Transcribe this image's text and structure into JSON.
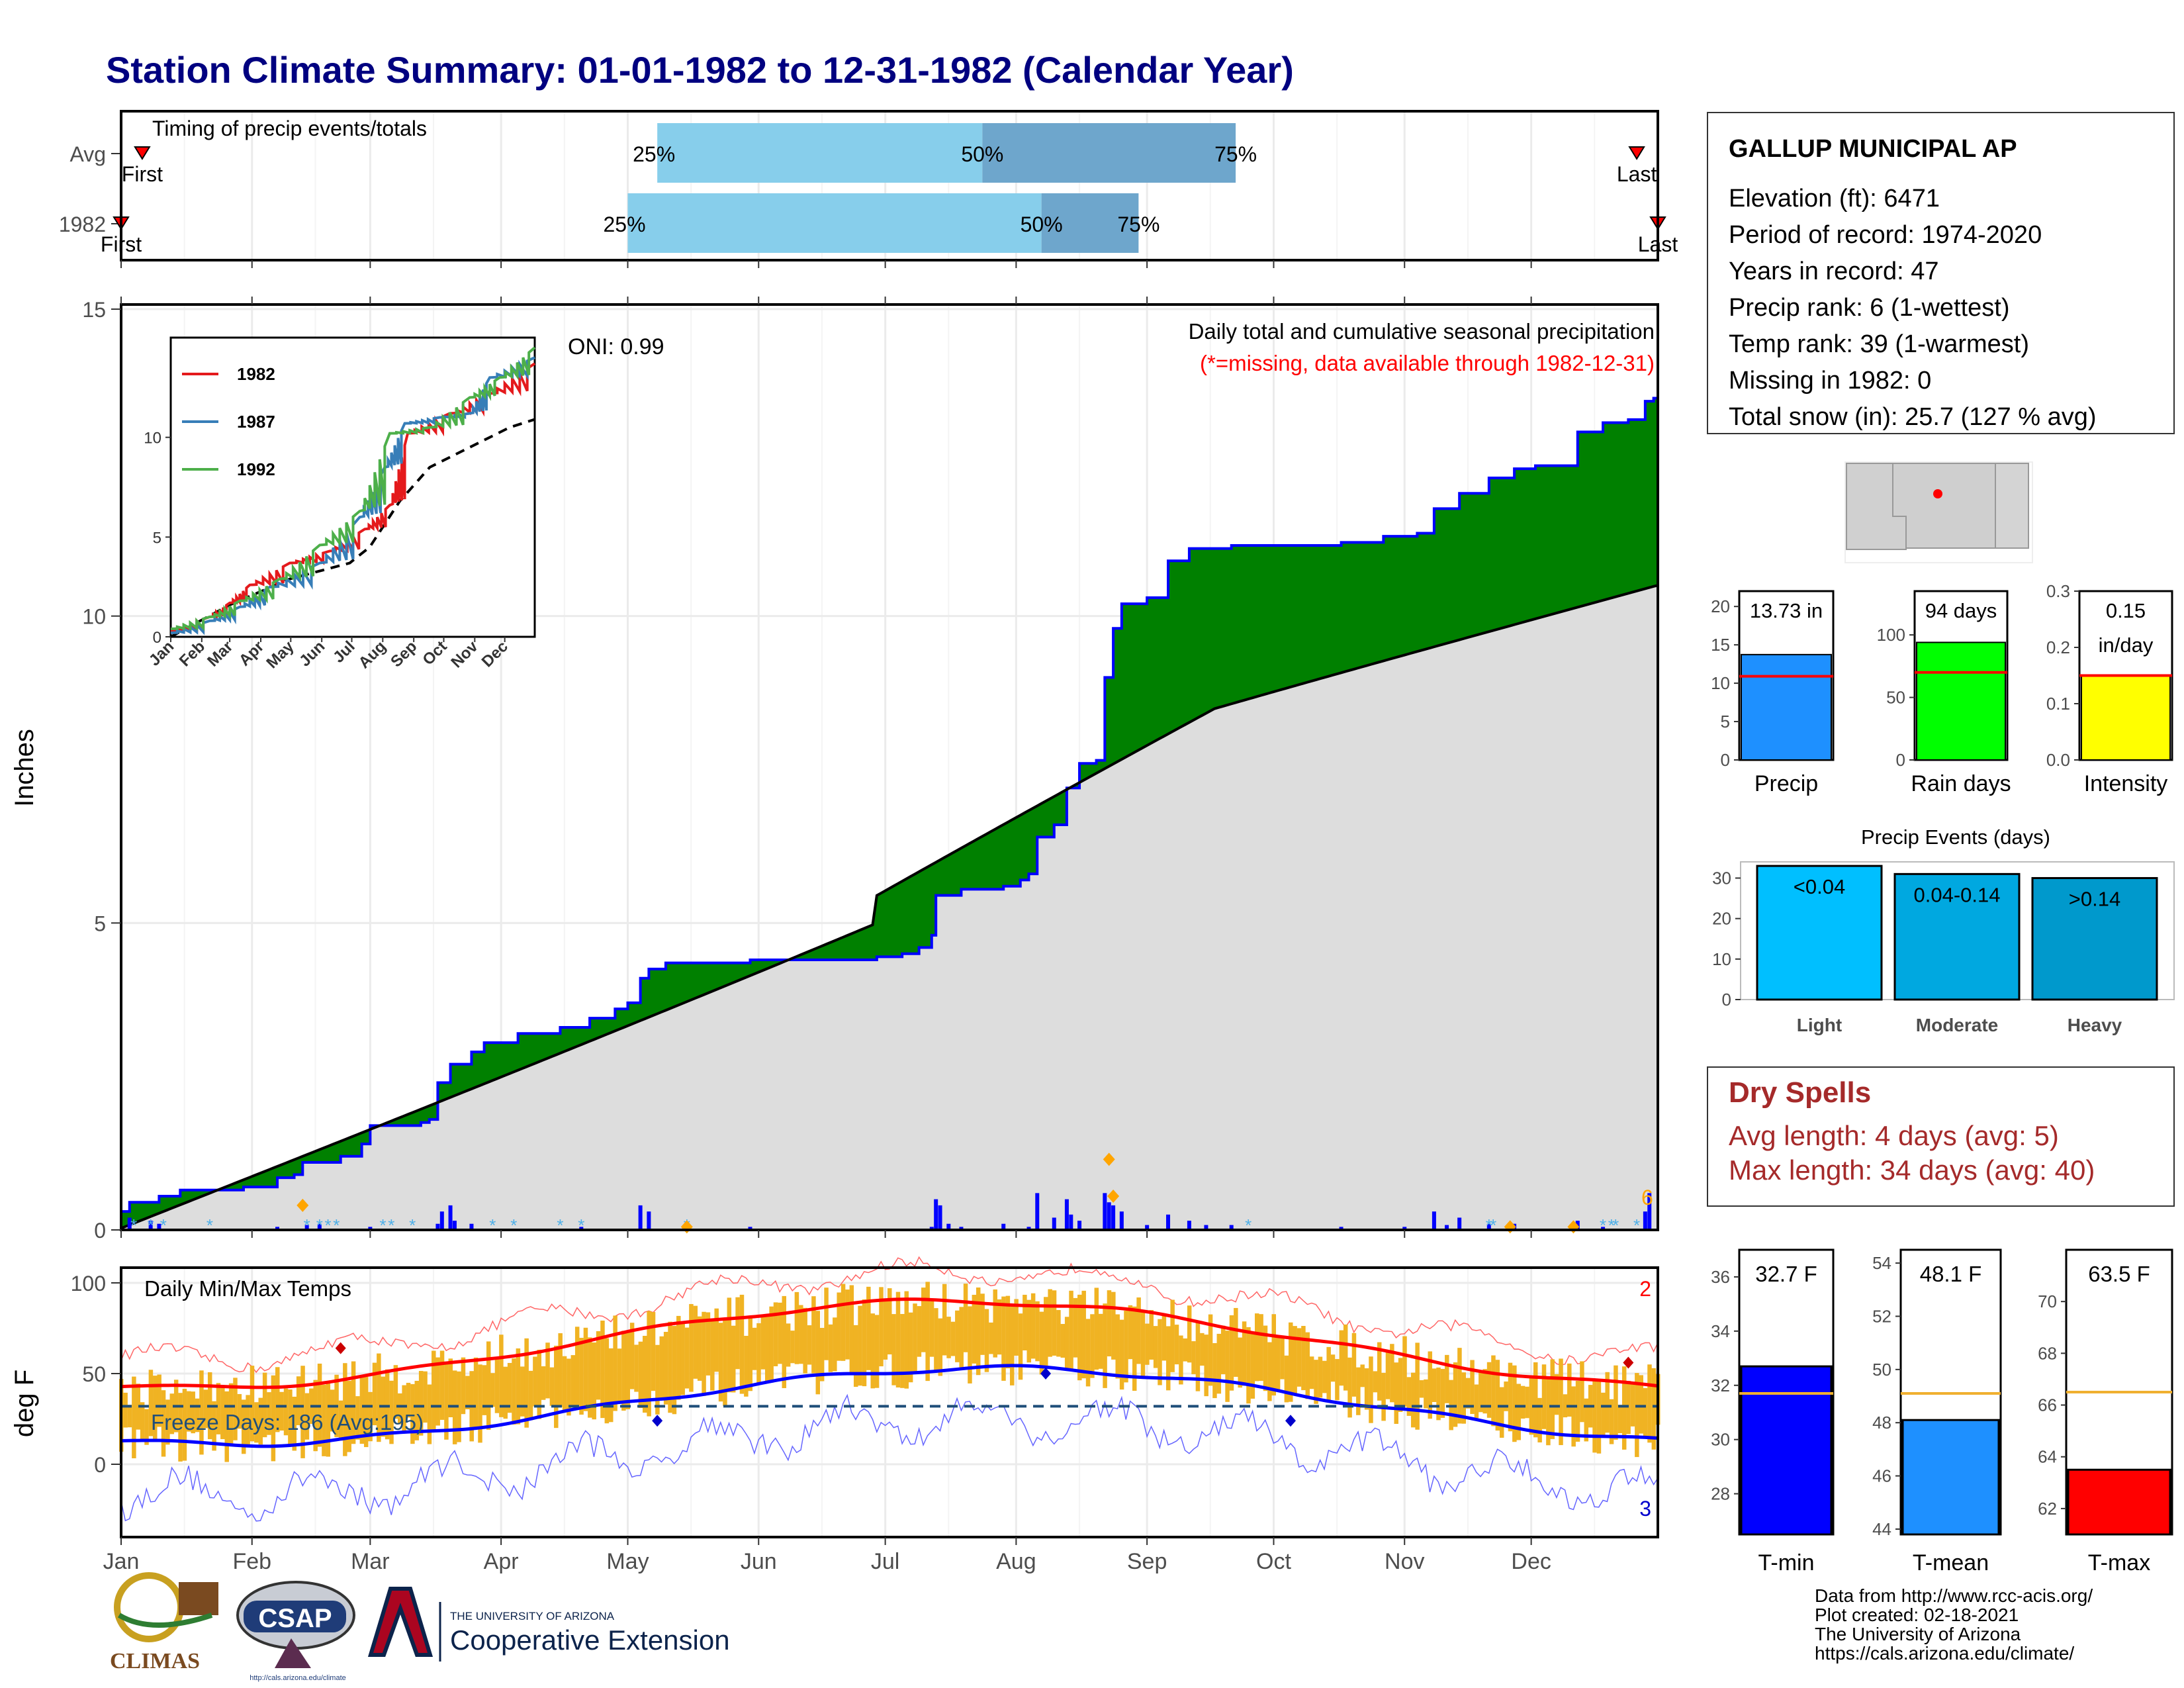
{
  "title": "Station Climate Summary: 01-01-1982 to 12-31-1982 (Calendar Year)",
  "months": [
    "Jan",
    "Feb",
    "Mar",
    "Apr",
    "May",
    "Jun",
    "Jul",
    "Aug",
    "Sep",
    "Oct",
    "Nov",
    "Dec"
  ],
  "colors": {
    "title": "#000080",
    "green": "#008000",
    "gray": "#dddddd",
    "blue": "#0000ff",
    "lightblue": "#87ceeb",
    "steelblue": "#6ea6cc",
    "orange": "#f0b323",
    "red": "#ff0000",
    "darkred": "#a52a2a"
  },
  "timing": {
    "title": "Timing of precip events/totals",
    "rows": [
      {
        "label": "Avg",
        "first": "First",
        "last": "Last",
        "first_doy": 6,
        "last_doy": 360,
        "p25_doy": 128,
        "p50_doy": 205,
        "p75_doy": 265,
        "p25": "25%",
        "p50": "50%",
        "p75": "75%"
      },
      {
        "label": "1982",
        "first": "First",
        "last": "Last",
        "first_doy": 1,
        "last_doy": 365,
        "p25_doy": 121,
        "p50_doy": 219,
        "p75_doy": 242,
        "p25": "25%",
        "p50": "50%",
        "p75": "75%"
      }
    ]
  },
  "precip": {
    "ylabel": "Inches",
    "title": "Daily total and cumulative seasonal precipitation",
    "missing_note": "(*=missing, data available through 1982-12-31)",
    "oni": "ONI: 0.99",
    "count_label": "6",
    "yticks": [
      0,
      5,
      10,
      15
    ],
    "ylim": [
      0,
      15
    ]
  },
  "inset": {
    "yticks": [
      0,
      5,
      10
    ],
    "ylim": [
      0,
      15
    ],
    "months": [
      "Jan",
      "Feb",
      "Mar",
      "Apr",
      "May",
      "Jun",
      "Jul",
      "Aug",
      "Sep",
      "Oct",
      "Nov",
      "Dec"
    ],
    "legend": [
      {
        "name": "1982",
        "color": "#e41a1c"
      },
      {
        "name": "1987",
        "color": "#377eb8"
      },
      {
        "name": "1992",
        "color": "#4daf4a"
      }
    ]
  },
  "temps": {
    "ylabel": "deg F",
    "title": "Daily Min/Max Temps",
    "freeze": "Freeze Days: 186 (Avg:195)",
    "freeze_temp": 32,
    "max_records": "2",
    "min_records": "3",
    "yticks": [
      0,
      50,
      100
    ],
    "ylim": [
      -40,
      105
    ]
  },
  "station": {
    "name": "GALLUP MUNICIPAL AP",
    "lines": [
      "Elevation (ft): 6471",
      "Period of record: 1974-2020",
      "Years in record: 47",
      "Precip rank: 6 (1-wettest)",
      "Temp rank: 39 (1-warmest)",
      "Missing in 1982: 0",
      "Total snow (in): 25.7 (127 % avg)"
    ]
  },
  "summary_bars": [
    {
      "label": "Precip",
      "value_text": "13.73 in",
      "value": 13.73,
      "avg": 10.9,
      "color": "#1e90ff",
      "ylim": [
        0,
        22
      ],
      "yticks": [
        0,
        5,
        10,
        15,
        20
      ]
    },
    {
      "label": "Rain days",
      "value_text": "94 days",
      "value": 94,
      "avg": 70,
      "color": "#00ff00",
      "ylim": [
        0,
        135
      ],
      "yticks": [
        0,
        50,
        100
      ]
    },
    {
      "label": "Intensity",
      "value_text": "0.15\nin/day",
      "value": 0.15,
      "avg": 0.15,
      "color": "#ffff00",
      "ylim": [
        0,
        0.3
      ],
      "yticks": [
        "0.0",
        "0.1",
        "0.2",
        "0.3"
      ]
    }
  ],
  "events": {
    "title": "Precip Events (days)",
    "yticks": [
      0,
      10,
      20,
      30
    ],
    "ylim": [
      0,
      34
    ],
    "bars": [
      {
        "label": "Light",
        "range": "<0.04",
        "value": 33,
        "color": "#00bfff"
      },
      {
        "label": "Moderate",
        "range": "0.04-0.14",
        "value": 31,
        "color": "#00a8e0"
      },
      {
        "label": "Heavy",
        "range": ">0.14",
        "value": 30,
        "color": "#0099cc"
      }
    ]
  },
  "dry": {
    "title": "Dry Spells",
    "avg": "Avg length: 4 days (avg: 5)",
    "max": "Max length: 34 days (avg: 40)"
  },
  "temp_bars": [
    {
      "label": "T-min",
      "value_text": "32.7 F",
      "value": 32.7,
      "avg": 31.7,
      "color": "#0000ff",
      "ylim": [
        26.5,
        37
      ],
      "yticks": [
        28,
        30,
        32,
        34,
        36
      ]
    },
    {
      "label": "T-mean",
      "value_text": "48.1 F",
      "value": 48.1,
      "avg": 49.1,
      "color": "#1e90ff",
      "ylim": [
        43.8,
        54.5
      ],
      "yticks": [
        44,
        46,
        48,
        50,
        52,
        54
      ]
    },
    {
      "label": "T-max",
      "value_text": "63.5 F",
      "value": 63.5,
      "avg": 66.5,
      "color": "#ff0000",
      "ylim": [
        61,
        72
      ],
      "yticks": [
        62,
        64,
        66,
        68,
        70
      ]
    }
  ],
  "footer": {
    "credits": [
      "Data from http://www.rcc-acis.org/",
      "Plot created: 02-18-2021",
      "The University of Arizona",
      "https://cals.arizona.edu/climate/"
    ],
    "climas": "CLIMAS",
    "csap": "CSAP",
    "csap_url": "http://cals.arizona.edu/climate",
    "ua_small": "THE UNIVERSITY OF ARIZONA",
    "ua_big": "Cooperative Extension"
  },
  "chart_data": {
    "type": "area",
    "x_unit": "day of year 1982",
    "cumulative_1982": [
      [
        1,
        0.4
      ],
      [
        10,
        0.55
      ],
      [
        15,
        0.65
      ],
      [
        35,
        0.7
      ],
      [
        45,
        0.9
      ],
      [
        55,
        1.0
      ],
      [
        75,
        1.2
      ],
      [
        80,
        1.3
      ],
      [
        90,
        1.35
      ],
      [
        100,
        1.7
      ],
      [
        115,
        1.75
      ],
      [
        118,
        2.5
      ],
      [
        125,
        2.8
      ],
      [
        140,
        3.0
      ],
      [
        145,
        3.2
      ],
      [
        160,
        3.3
      ],
      [
        175,
        3.45
      ],
      [
        180,
        3.7
      ],
      [
        185,
        3.75
      ],
      [
        197,
        4.1
      ],
      [
        199,
        4.3
      ],
      [
        250,
        4.4
      ],
      [
        280,
        4.45
      ],
      [
        285,
        4.6
      ],
      [
        300,
        5.4
      ],
      [
        305,
        5.45
      ],
      [
        315,
        5.55
      ],
      [
        330,
        5.6
      ],
      [
        335,
        5.8
      ],
      [
        340,
        6.5
      ],
      [
        350,
        7.5
      ],
      [
        355,
        7.6
      ],
      [
        360,
        7.7
      ],
      [
        370,
        7.75
      ],
      [
        378,
        8.0
      ],
      [
        385,
        9.0
      ],
      [
        390,
        9.3
      ],
      [
        395,
        10.0
      ],
      [
        410,
        10.3
      ],
      [
        425,
        10.6
      ],
      [
        440,
        10.9
      ],
      [
        490,
        11.1
      ],
      [
        500,
        11.2
      ],
      [
        510,
        11.3
      ],
      [
        540,
        11.4
      ],
      [
        550,
        11.5
      ],
      [
        570,
        12.0
      ],
      [
        590,
        12.2
      ],
      [
        600,
        12.5
      ],
      [
        610,
        12.7
      ],
      [
        625,
        12.85
      ],
      [
        650,
        13.0
      ],
      [
        665,
        13.05
      ],
      [
        680,
        13.6
      ],
      [
        700,
        13.73
      ]
    ],
    "cumulative_avg": [
      [
        1,
        0
      ],
      [
        365,
        10.5
      ]
    ],
    "tmax_1982_range": [
      20,
      95
    ],
    "tmin_1982_range": [
      -30,
      60
    ]
  }
}
